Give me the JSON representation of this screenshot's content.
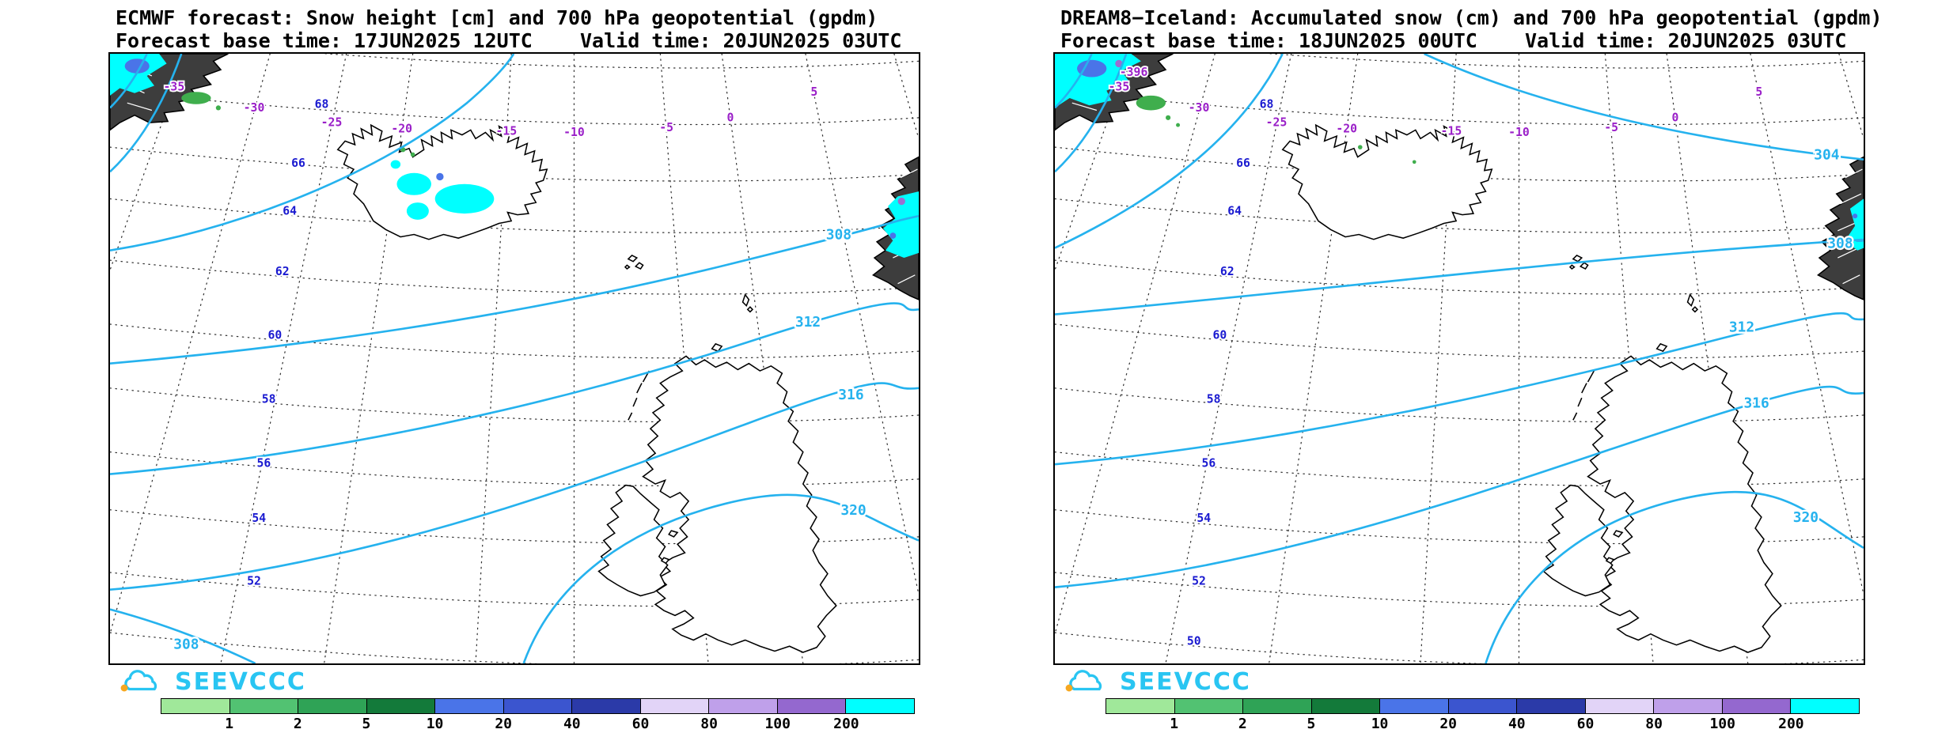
{
  "page": {
    "background": "#ffffff"
  },
  "logo": {
    "text": "SEEVCCC",
    "cloud_color": "#29c5f2",
    "sun_color": "#f6a821"
  },
  "legend": {
    "values": [
      "1",
      "2",
      "5",
      "10",
      "20",
      "40",
      "60",
      "80",
      "100",
      "200"
    ],
    "colors": [
      "#a0e89a",
      "#52c272",
      "#2fa356",
      "#137a3a",
      "#4a74e8",
      "#3b55cf",
      "#2b3aa8",
      "#e2d4f7",
      "#bfa0ea",
      "#9468cf",
      "#00ffff"
    ]
  },
  "colors": {
    "geopotential_contour": "#25b2ee",
    "latitude_labels": "#1a1ad0",
    "longitude_labels": "#9a1fc8",
    "snow_heavy": "#00ffff",
    "snow_moderate": "#4a74e8",
    "snow_light": "#3fae4d"
  },
  "panels": [
    {
      "title_line1": "ECMWF forecast: Snow height [cm] and 700 hPa geopotential (gpdm)",
      "title_line2": "Forecast base time: 17JUN2025 12UTC    Valid time: 20JUN2025 03UTC",
      "lon_labels": [
        "-35",
        "-30",
        "-25",
        "-20",
        "-15",
        "-10",
        "-5",
        "0",
        "5"
      ],
      "lat_labels": [
        "68",
        "66",
        "64",
        "62",
        "60",
        "58",
        "56",
        "54",
        "52"
      ],
      "contour_labels": {
        "a": "308",
        "b": "312",
        "c": "316",
        "d": "320",
        "e": "308"
      }
    },
    {
      "title_line1": "DREAM8−Iceland: Accumulated snow (cm) and 700 hPa geopotential (gpdm)",
      "title_line2": "Forecast base time: 18JUN2025 00UTC    Valid time: 20JUN2025 03UTC",
      "lon_labels": [
        "-35",
        "-30",
        "-25",
        "-20",
        "-15",
        "-10",
        "-5",
        "0",
        "5"
      ],
      "lat_labels": [
        "68",
        "66",
        "64",
        "62",
        "60",
        "58",
        "56",
        "54",
        "52",
        "50"
      ],
      "corner_label": "-396",
      "contour_labels": {
        "a": "304",
        "b": "308",
        "c": "312",
        "d": "316",
        "e": "320"
      }
    }
  ]
}
